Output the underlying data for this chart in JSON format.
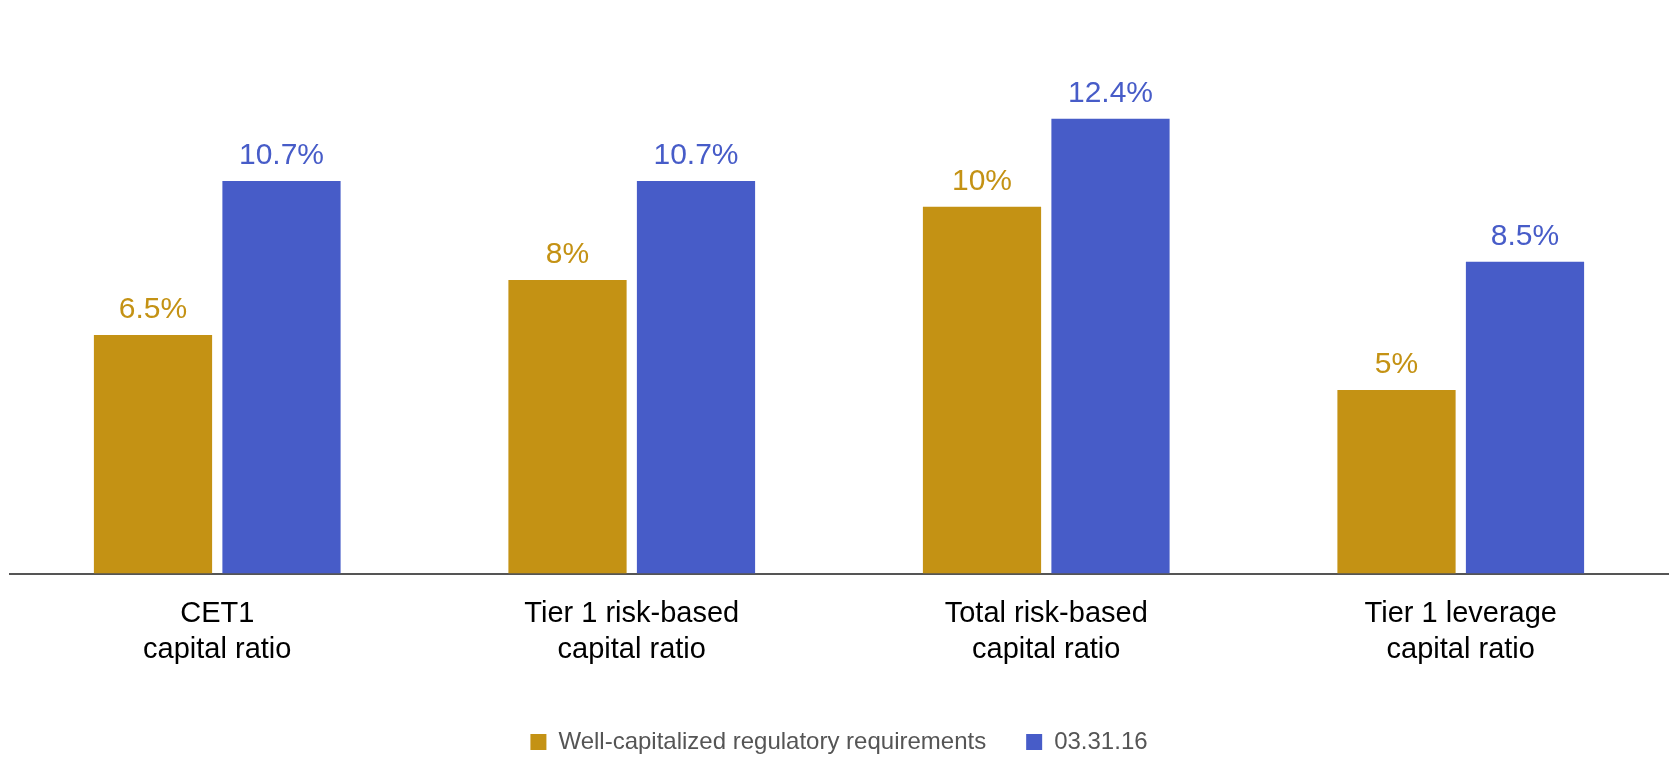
{
  "chart_data": {
    "type": "bar",
    "categories": [
      "CET1\ncapital ratio",
      "Tier 1 risk-based\ncapital ratio",
      "Total risk-based\ncapital ratio",
      "Tier 1 leverage\ncapital ratio"
    ],
    "series": [
      {
        "name": "Well-capitalized regulatory requirements",
        "color": "#c49214",
        "values": [
          6.5,
          8,
          10,
          5
        ],
        "value_labels": [
          "6.5%",
          "8%",
          "10%",
          "5%"
        ]
      },
      {
        "name": "03.31.16",
        "color": "#475cc8",
        "values": [
          10.7,
          10.7,
          12.4,
          8.5
        ],
        "value_labels": [
          "10.7%",
          "10.7%",
          "12.4%",
          "8.5%"
        ]
      }
    ],
    "legend": "bottom",
    "grid": false,
    "tick_labels": "x"
  }
}
